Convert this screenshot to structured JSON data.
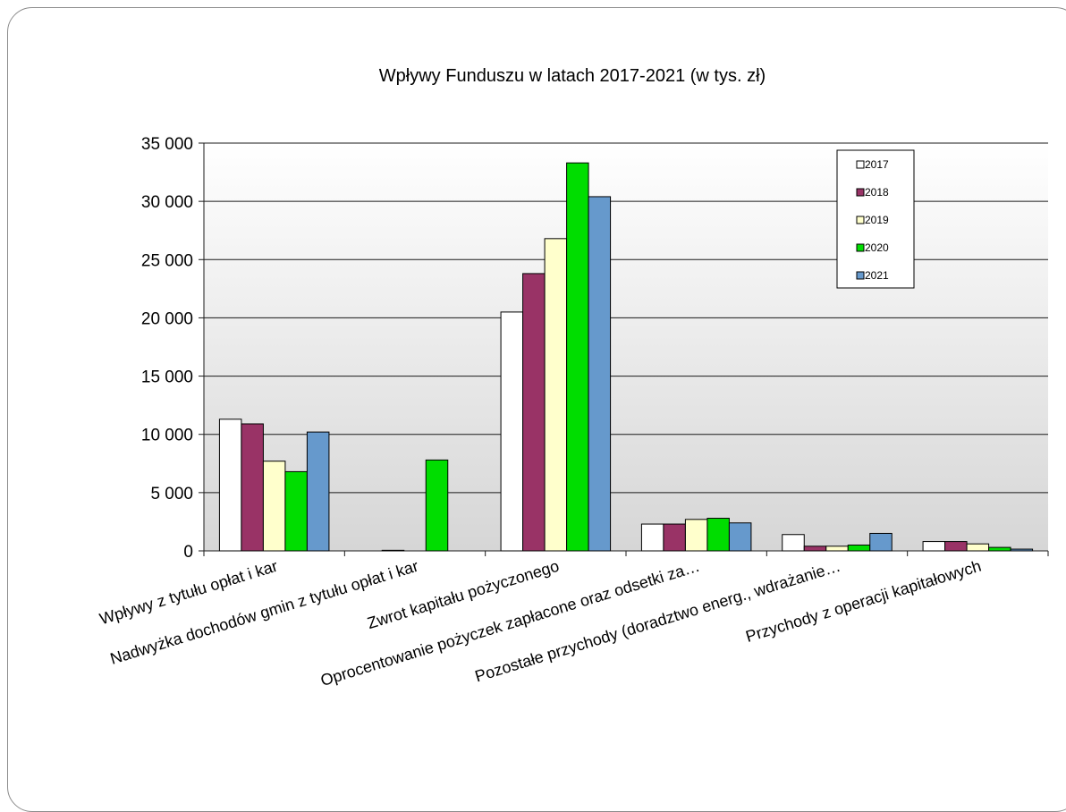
{
  "chart_data": {
    "type": "bar",
    "title": "Wpływy Funduszu w latach 2017-2021 (w tys. zł)",
    "xlabel": "",
    "ylabel": "",
    "ylim": [
      0,
      35000
    ],
    "yticks": [
      0,
      5000,
      10000,
      15000,
      20000,
      25000,
      30000,
      35000
    ],
    "ytick_labels": [
      "0",
      "5 000",
      "10 000",
      "15 000",
      "20 000",
      "25 000",
      "30 000",
      "35 000"
    ],
    "grid": true,
    "legend_position": "top-right",
    "categories": [
      "Wpływy z tytułu opłat i kar",
      "Nadwyżka dochodów gmin z tytułu opłat i kar",
      "Zwrot kapitału pożyczonego",
      "Oprocentowanie pożyczek  zapłacone oraz odsetki za…",
      "Pozostałe przychody  (doradztwo energ., wdrażanie…",
      "Przychody z operacji kapitałowych"
    ],
    "series": [
      {
        "name": "2017",
        "color": "#ffffff",
        "values": [
          11300,
          0,
          20500,
          2300,
          1400,
          800
        ]
      },
      {
        "name": "2018",
        "color": "#993366",
        "values": [
          10900,
          50,
          23800,
          2300,
          400,
          800
        ]
      },
      {
        "name": "2019",
        "color": "#ffffcc",
        "values": [
          7700,
          0,
          26800,
          2700,
          400,
          600
        ]
      },
      {
        "name": "2020",
        "color": "#00dd00",
        "values": [
          6800,
          7800,
          33300,
          2800,
          500,
          300
        ]
      },
      {
        "name": "2021",
        "color": "#6699cc",
        "values": [
          10200,
          0,
          30400,
          2400,
          1500,
          150
        ]
      }
    ]
  }
}
